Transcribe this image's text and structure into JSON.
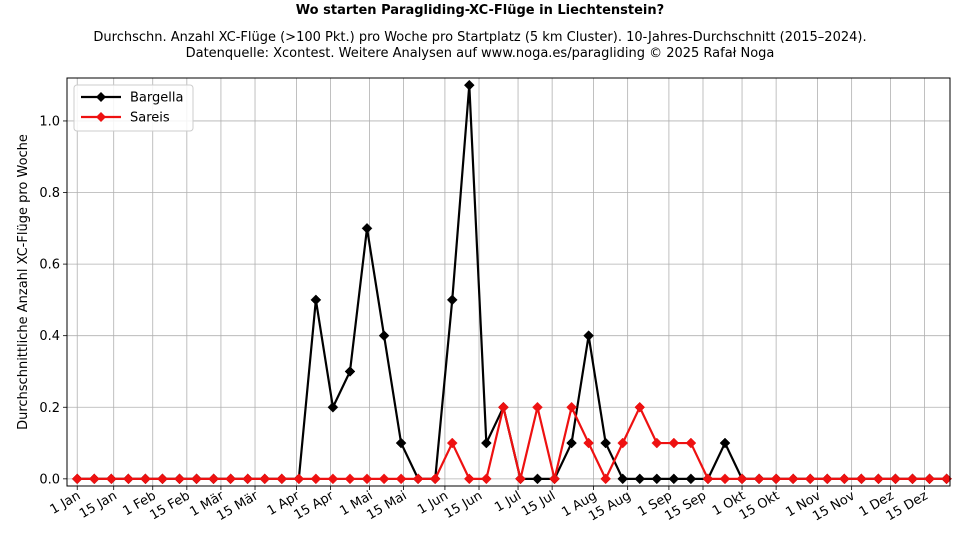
{
  "title": "Wo starten Paragliding-XC-Flüge in Liechtenstein?",
  "subtitle_line1": "Durchschn. Anzahl XC-Flüge (>100 Pkt.) pro Woche pro Startplatz (5 km Cluster). 10-Jahres-Durchschnitt (2015–2024).",
  "subtitle_line2": "Datenquelle: Xcontest. Weitere Analysen auf www.noga.es/paragliding © 2025 Rafał Noga",
  "chart_data": {
    "type": "line",
    "ylabel": "Durchschnittliche Anzahl XC-Flüge pro Woche",
    "xlabel": "",
    "x_unit": "week_of_year",
    "x": [
      1,
      2,
      3,
      4,
      5,
      6,
      7,
      8,
      9,
      10,
      11,
      12,
      13,
      14,
      15,
      16,
      17,
      18,
      19,
      20,
      21,
      22,
      23,
      24,
      25,
      26,
      27,
      28,
      29,
      30,
      31,
      32,
      33,
      34,
      35,
      36,
      37,
      38,
      39,
      40,
      41,
      42,
      43,
      44,
      45,
      46,
      47,
      48,
      49,
      50,
      51,
      52
    ],
    "xticks": [
      "1 Jan",
      "15 Jan",
      "1 Feb",
      "15 Feb",
      "1 Mär",
      "15 Mär",
      "1 Apr",
      "15 Apr",
      "1 Mai",
      "15 Mai",
      "1 Jun",
      "15 Jun",
      "1 Jul",
      "15 Jul",
      "1 Aug",
      "15 Aug",
      "1 Sep",
      "15 Sep",
      "1 Okt",
      "15 Okt",
      "1 Nov",
      "15 Nov",
      "1 Dez",
      "15 Dez"
    ],
    "xtick_week_positions": [
      1,
      3.14,
      5.43,
      7.43,
      9.43,
      11.43,
      13.86,
      15.86,
      18.14,
      20.14,
      22.57,
      24.57,
      26.86,
      28.86,
      31.29,
      33.29,
      35.71,
      37.71,
      40,
      42,
      44.43,
      46.43,
      48.71,
      50.71
    ],
    "yticks": [
      0.0,
      0.2,
      0.4,
      0.6,
      0.8,
      1.0
    ],
    "xlim": [
      0.4,
      52.2
    ],
    "ylim": [
      -0.02,
      1.12
    ],
    "grid": true,
    "legend_position": "top-left",
    "series": [
      {
        "name": "Bargella",
        "color": "#000000",
        "marker": "diamond",
        "values": [
          0,
          0,
          0,
          0,
          0,
          0,
          0,
          0,
          0,
          0,
          0,
          0,
          0,
          0,
          0.5,
          0.2,
          0.3,
          0.7,
          0.4,
          0.1,
          0,
          0,
          0.5,
          1.1,
          0.1,
          0.2,
          0,
          0,
          0,
          0.1,
          0.4,
          0.1,
          0,
          0,
          0,
          0,
          0,
          0,
          0.1,
          0,
          0,
          0,
          0,
          0,
          0,
          0,
          0,
          0,
          0,
          0,
          0,
          0
        ]
      },
      {
        "name": "Sareis",
        "color": "#ee1111",
        "marker": "diamond",
        "values": [
          0,
          0,
          0,
          0,
          0,
          0,
          0,
          0,
          0,
          0,
          0,
          0,
          0,
          0,
          0,
          0,
          0,
          0,
          0,
          0,
          0,
          0,
          0.1,
          0,
          0,
          0.2,
          0,
          0.2,
          0,
          0.2,
          0.1,
          0,
          0.1,
          0.2,
          0.1,
          0.1,
          0.1,
          0,
          0,
          0,
          0,
          0,
          0,
          0,
          0,
          0,
          0,
          0,
          0,
          0,
          0,
          0
        ]
      }
    ]
  }
}
